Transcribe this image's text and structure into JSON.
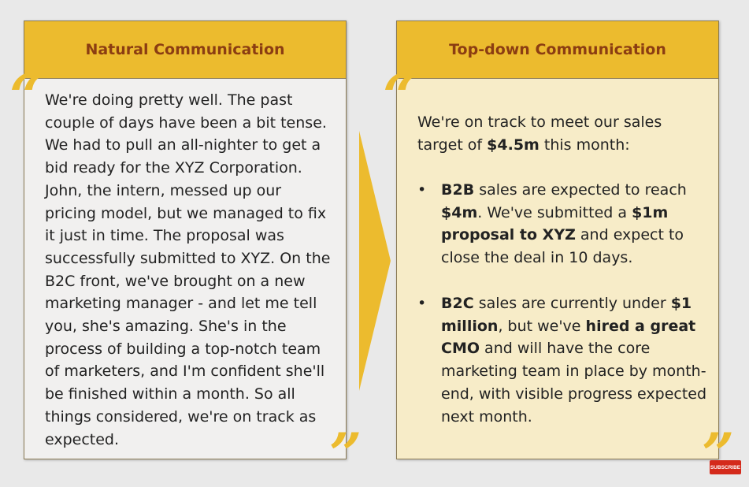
{
  "left": {
    "title": "Natural Communication",
    "text": "We're doing pretty well. The past couple of days have been a bit tense. We had to pull an all-nighter to get a bid ready for the XYZ Corporation. John, the intern, messed up our pricing model, but we managed to fix it just in time. The proposal was successfully submitted to XYZ. On the B2C front, we've brought on a new marketing manager - and let me tell you, she's amazing. She's in the process of building a top-notch team of marketers, and I'm confident she'll be finished within a month. So all things considered, we're on track as expected."
  },
  "right": {
    "title": "Top-down Communication",
    "intro_a": "We're on track to meet our sales target of ",
    "intro_b": "$4.5m",
    "intro_c": " this month:",
    "bullet1": {
      "t1": "B2B",
      "t2": " sales are expected to reach ",
      "t3": "$4m",
      "t4": ". We've submitted a ",
      "t5": "$1m proposal to XYZ",
      "t6": " and expect to close the deal in 10 days."
    },
    "bullet2": {
      "t1": "B2C",
      "t2": " sales are currently under ",
      "t3": "$1 million",
      "t4": ", but we've ",
      "t5": "hired a great CMO",
      "t6": " and will have the core marketing team in place by month-end, with visible progress expected next month."
    }
  },
  "bullet_char": "•",
  "quote_open": "“",
  "quote_close": "”",
  "subscribe_label": "SUBSCRIBE",
  "colors": {
    "accent": "#ecbb2e",
    "title": "#8b3d12",
    "right_bg": "#f7ecc8",
    "left_bg": "#f1f0ef"
  }
}
